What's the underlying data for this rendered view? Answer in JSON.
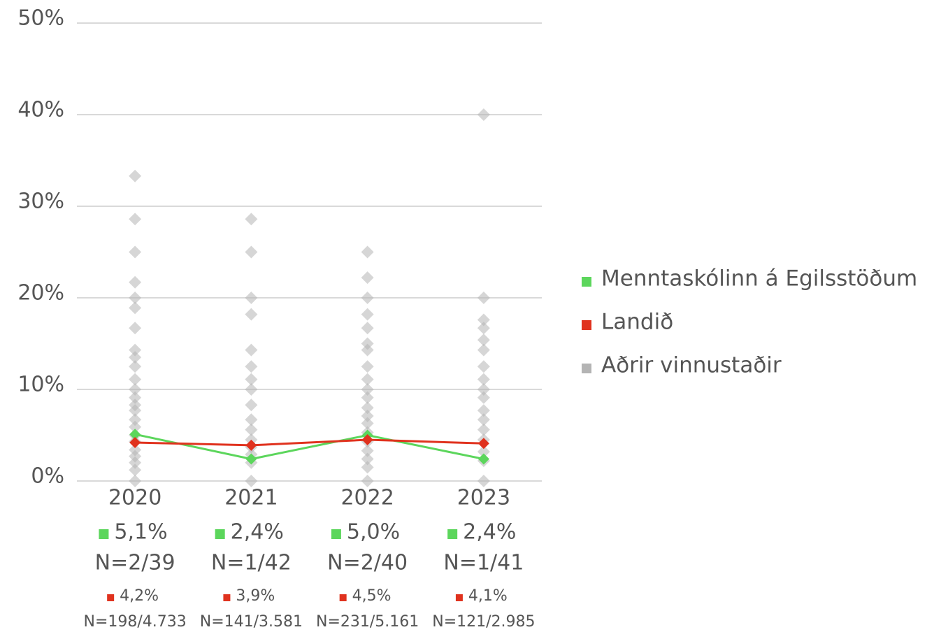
{
  "chart_data": {
    "type": "line",
    "categories": [
      "2020",
      "2021",
      "2022",
      "2023"
    ],
    "ylim": [
      0,
      50
    ],
    "yticks": [
      {
        "value": 0,
        "label": "0%"
      },
      {
        "value": 10,
        "label": "10%"
      },
      {
        "value": 20,
        "label": "20%"
      },
      {
        "value": 30,
        "label": "30%"
      },
      {
        "value": 40,
        "label": "40%"
      },
      {
        "value": 50,
        "label": "50%"
      }
    ],
    "grid": true,
    "legend": "right",
    "series": [
      {
        "name": "Menntaskólinn á Egilsstöðum",
        "color": "#5cd65c",
        "values": [
          5.1,
          2.4,
          5.0,
          2.4
        ],
        "value_labels": [
          "5,1%",
          "2,4%",
          "5,0%",
          "2,4%"
        ],
        "n_labels": [
          "N=2/39",
          "N=1/42",
          "N=2/40",
          "N=1/41"
        ]
      },
      {
        "name": "Landið",
        "color": "#e0321e",
        "values": [
          4.2,
          3.9,
          4.5,
          4.1
        ],
        "value_labels": [
          "4,2%",
          "3,9%",
          "4,5%",
          "4,1%"
        ],
        "n_labels": [
          "N=198/4.733",
          "N=141/3.581",
          "N=231/5.161",
          "N=121/2.985"
        ]
      },
      {
        "name": "Aðrir vinnustaðir",
        "color": "#b4b4b4",
        "values": [
          [
            33.3,
            28.6,
            25,
            21.7,
            20,
            18.9,
            16.7,
            14.3,
            13.5,
            12.5,
            11.1,
            10,
            9.1,
            8.3,
            7.7,
            6.7,
            5.9,
            5,
            4.3,
            3.4,
            2.7,
            2,
            1.2,
            0
          ],
          [
            28.6,
            25,
            20,
            18.2,
            14.3,
            12.5,
            11.1,
            10,
            8.3,
            6.7,
            5.6,
            4.5,
            3.7,
            2.9,
            2,
            0
          ],
          [
            25,
            22.2,
            20,
            18.2,
            16.7,
            15,
            14.3,
            12.5,
            11.1,
            10,
            9.1,
            8,
            7.1,
            6.3,
            5.3,
            4.3,
            3.3,
            2.4,
            1.5,
            0
          ],
          [
            40,
            20,
            17.6,
            16.7,
            15.4,
            14.3,
            12.5,
            11.1,
            10,
            9.1,
            7.7,
            6.7,
            5.6,
            4.5,
            3.2,
            2.2,
            0
          ]
        ]
      }
    ]
  }
}
